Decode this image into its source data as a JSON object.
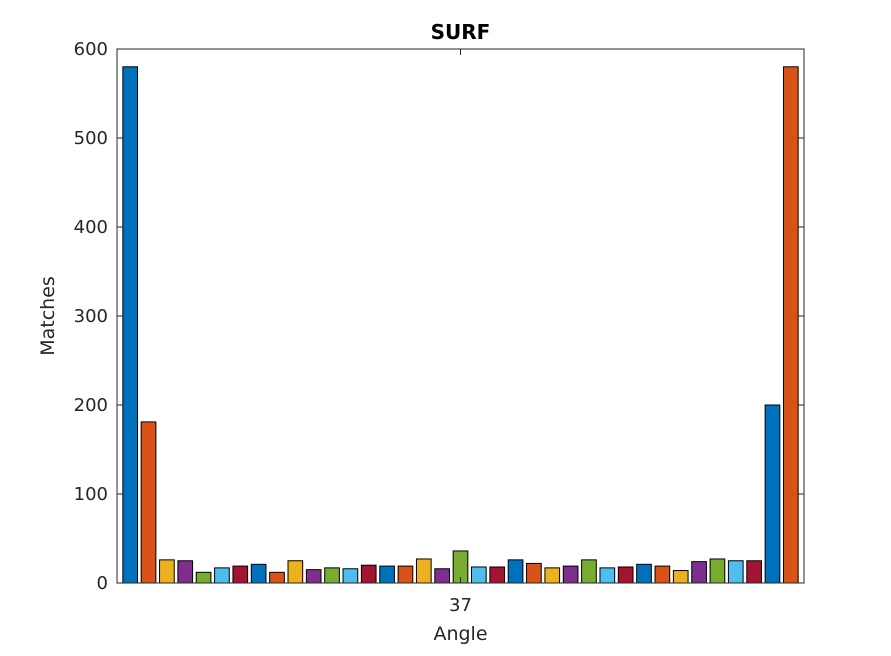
{
  "chart_data": {
    "type": "bar",
    "title": "SURF",
    "xlabel": "Angle",
    "ylabel": "Matches",
    "ylim": [
      0,
      600
    ],
    "yticks": [
      0,
      100,
      200,
      300,
      400,
      500,
      600
    ],
    "xtick_labels": [
      "37"
    ],
    "grid": false,
    "legend": "none",
    "values": [
      580,
      181,
      26,
      25,
      12,
      17,
      19,
      21,
      12,
      25,
      15,
      17,
      16,
      20,
      19,
      19,
      27,
      16,
      36,
      18,
      18,
      26,
      22,
      17,
      19,
      26,
      17,
      18,
      21,
      19,
      14,
      24,
      27,
      25,
      25,
      200,
      580
    ],
    "colors": [
      "#0072BD",
      "#D95319",
      "#EDB120",
      "#7E2F8E",
      "#77AC30",
      "#4DBEEE",
      "#A2142F"
    ]
  }
}
